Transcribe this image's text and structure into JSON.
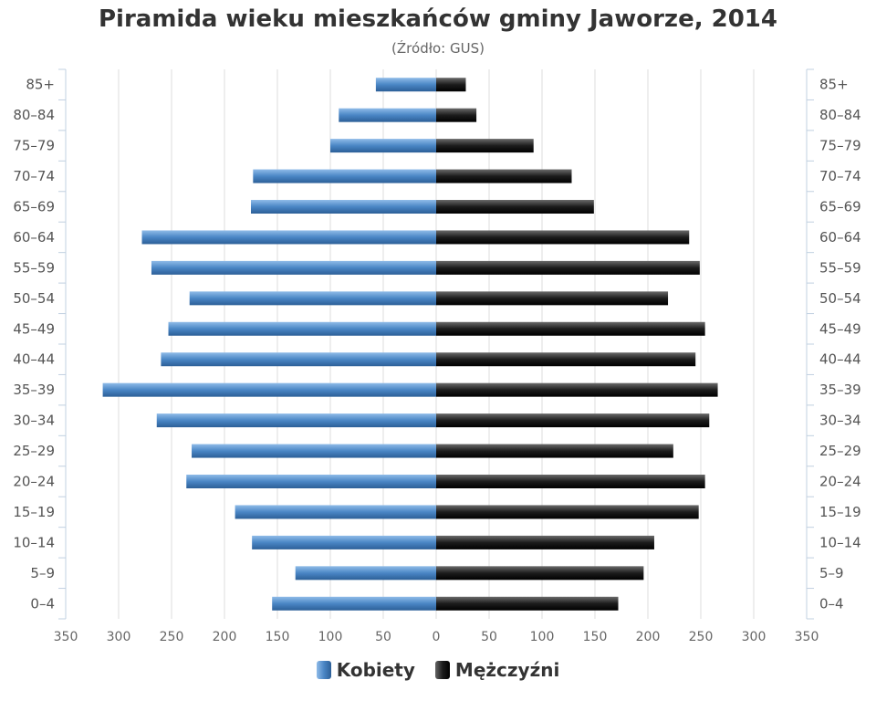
{
  "chart_data": {
    "type": "bar",
    "orientation": "horizontal-pyramid",
    "title": "Piramida wieku mieszkańców gminy Jaworze, 2014",
    "subtitle": "(Źródło: GUS)",
    "categories": [
      "0–4",
      "5–9",
      "10–14",
      "15–19",
      "20–24",
      "25–29",
      "30–34",
      "35–39",
      "40–44",
      "45–49",
      "50–54",
      "55–59",
      "60–64",
      "65–69",
      "70–74",
      "75–79",
      "80–84",
      "85+"
    ],
    "series": [
      {
        "name": "Kobiety",
        "side": "left",
        "color": "#4a86c5",
        "values": [
          155,
          133,
          174,
          190,
          236,
          231,
          264,
          315,
          260,
          253,
          233,
          269,
          278,
          175,
          173,
          100,
          92,
          57
        ]
      },
      {
        "name": "Mężczyźni",
        "side": "right",
        "color": "#1c1c1c",
        "values": [
          172,
          196,
          206,
          248,
          254,
          224,
          258,
          266,
          245,
          254,
          219,
          249,
          239,
          149,
          128,
          92,
          38,
          28
        ]
      }
    ],
    "xlim": [
      -350,
      350
    ],
    "xticks": [
      -350,
      -300,
      -250,
      -200,
      -150,
      -100,
      -50,
      0,
      50,
      100,
      150,
      200,
      250,
      300,
      350
    ],
    "xtick_labels": [
      "350",
      "300",
      "250",
      "200",
      "150",
      "100",
      "50",
      "0",
      "50",
      "100",
      "150",
      "200",
      "250",
      "300",
      "350"
    ],
    "grid": true,
    "legend_position": "bottom-center"
  }
}
